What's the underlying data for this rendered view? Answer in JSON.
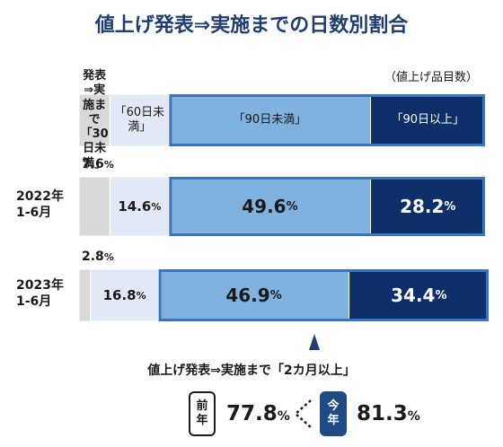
{
  "title": "値上げ発表⇒実施までの日数別割合",
  "unit_note": "（値上げ品目数）",
  "colors": {
    "title": "#1f3d73",
    "cat0": "#d9d9d9",
    "cat1": "#e3e8f7",
    "cat2": "#7fb2de",
    "cat3": "#0f2f6b",
    "highlight": "#3a74c0"
  },
  "chart_data": {
    "type": "bar",
    "orientation": "horizontal",
    "stacked": true,
    "categories": [
      "2022年 1-6月",
      "2023年 1-6月"
    ],
    "series": [
      {
        "name": "発表⇒実施まで「30日未満」",
        "values": [
          7.6,
          2.8
        ]
      },
      {
        "name": "「60日未満」",
        "values": [
          14.6,
          16.8
        ]
      },
      {
        "name": "「90日未満」",
        "values": [
          49.6,
          46.9
        ]
      },
      {
        "name": "「90日以上」",
        "values": [
          28.2,
          34.4
        ]
      }
    ],
    "value_labels": [
      [
        "7.6",
        "14.6",
        "49.6",
        "28.2"
      ],
      [
        "2.8",
        "16.8",
        "46.9",
        "34.4"
      ]
    ],
    "percent_suffix": "%",
    "legend_position": "top",
    "xlim": [
      0,
      100
    ]
  },
  "headers": [
    "発表⇒実施まで\n「30日未満」",
    "「60日未満」",
    "「90日未満」",
    "「90日以上」"
  ],
  "row_labels": [
    "2022年\n1-6月",
    "2023年\n1-6月"
  ],
  "comparison": {
    "label": "値上げ発表⇒実施まで「2カ月以上」",
    "prev_badge": "前\n年",
    "prev_value": "77.8",
    "curr_badge": "今\n年",
    "curr_value": "81.3",
    "pct": "%"
  }
}
